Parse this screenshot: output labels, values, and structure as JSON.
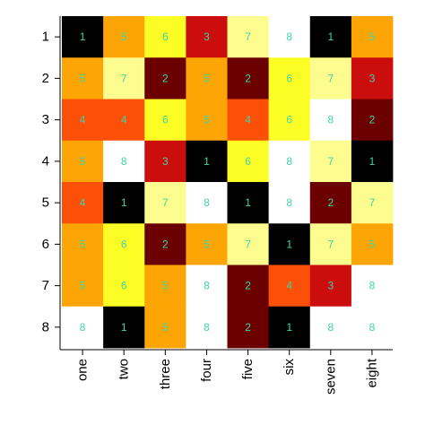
{
  "chart_data": {
    "type": "heatmap",
    "x_labels": [
      "one",
      "two",
      "three",
      "four",
      "five",
      "six",
      "seven",
      "eight"
    ],
    "y_labels": [
      "1",
      "2",
      "3",
      "4",
      "5",
      "6",
      "7",
      "8"
    ],
    "values": [
      [
        1,
        5,
        6,
        3,
        7,
        8,
        1,
        5
      ],
      [
        5,
        7,
        2,
        5,
        2,
        6,
        7,
        3
      ],
      [
        4,
        4,
        6,
        5,
        4,
        6,
        8,
        2
      ],
      [
        5,
        8,
        3,
        1,
        6,
        8,
        7,
        1
      ],
      [
        4,
        1,
        7,
        8,
        1,
        8,
        2,
        7
      ],
      [
        5,
        6,
        2,
        5,
        7,
        1,
        7,
        5
      ],
      [
        5,
        6,
        5,
        8,
        2,
        4,
        3,
        8
      ],
      [
        8,
        1,
        5,
        8,
        2,
        1,
        8,
        8
      ]
    ],
    "value_colors": {
      "1": "#000000",
      "2": "#6b0000",
      "3": "#cc0d0d",
      "4": "#fc5008",
      "5": "#fca505",
      "6": "#fdfd26",
      "7": "#fdfd8f",
      "8": "#ffffff"
    },
    "label_color": "#3cd7a7",
    "grid": false
  }
}
